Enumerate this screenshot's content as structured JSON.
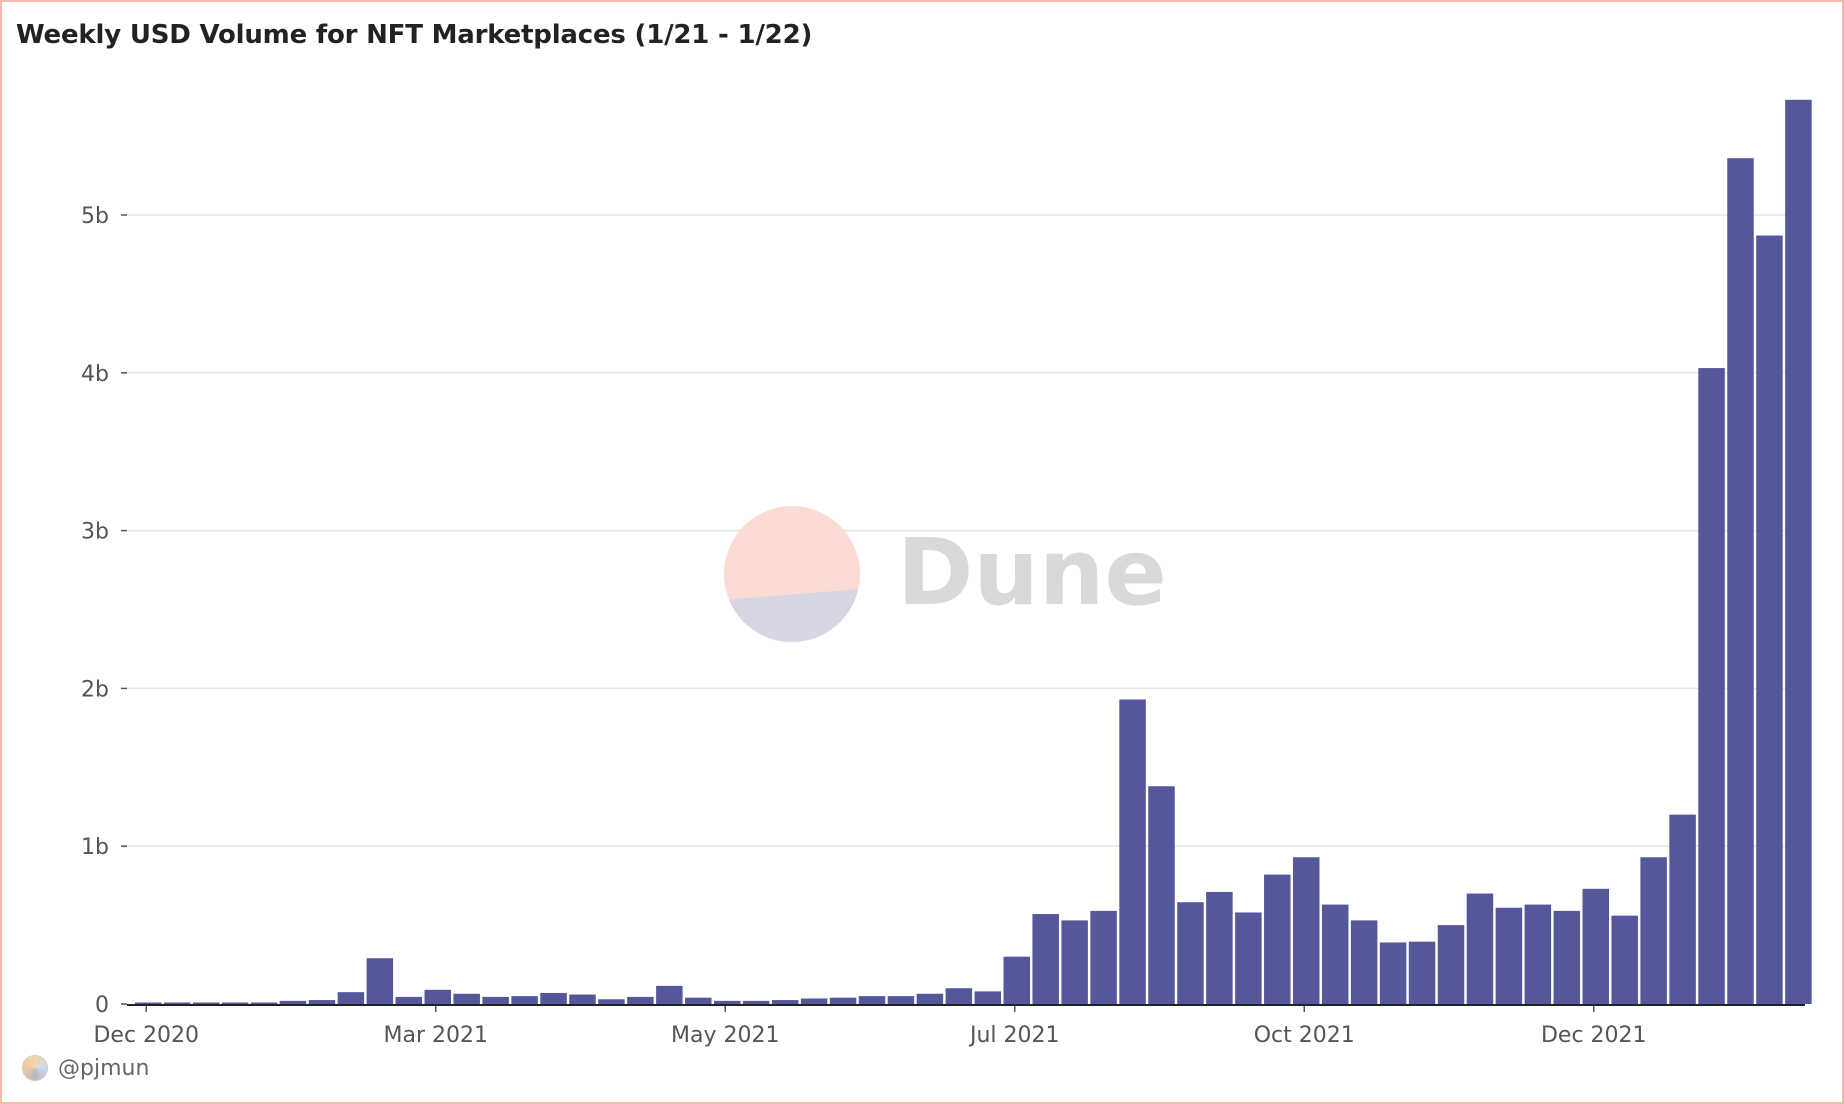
{
  "title": "Weekly USD Volume for NFT Marketplaces (1/21 - 1/22)",
  "watermark": {
    "text": "Dune",
    "colors": {
      "top": "#fbdcd5",
      "bottom": "#d6d6e4",
      "text": "#d9d9d9"
    }
  },
  "footer": {
    "user": "@pjmun",
    "icon": "avatar-icon"
  },
  "colors": {
    "bar": "#55579b",
    "grid": "#e6e6e6",
    "axis": "#222222",
    "border": "#f3b9a9"
  },
  "chart_data": {
    "type": "bar",
    "title": "Weekly USD Volume for NFT Marketplaces (1/21 - 1/22)",
    "xlabel": "",
    "ylabel": "",
    "ylim": [
      0,
      5.75
    ],
    "unit": "b",
    "grid": true,
    "y_ticks": [
      {
        "value": 0,
        "label": "0"
      },
      {
        "value": 1,
        "label": "1b"
      },
      {
        "value": 2,
        "label": "2b"
      },
      {
        "value": 3,
        "label": "3b"
      },
      {
        "value": 4,
        "label": "4b"
      },
      {
        "value": 5,
        "label": "5b"
      }
    ],
    "x_ticks": [
      {
        "index": 0,
        "label": "Dec 2020"
      },
      {
        "index": 10,
        "label": "Mar 2021"
      },
      {
        "index": 20,
        "label": "May 2021"
      },
      {
        "index": 30,
        "label": "Jul 2021"
      },
      {
        "index": 40,
        "label": "Oct 2021"
      },
      {
        "index": 50,
        "label": "Dec 2021"
      }
    ],
    "values": [
      0.005,
      0.005,
      0.005,
      0.005,
      0.005,
      0.02,
      0.025,
      0.075,
      0.29,
      0.045,
      0.09,
      0.065,
      0.045,
      0.05,
      0.07,
      0.06,
      0.03,
      0.045,
      0.115,
      0.04,
      0.02,
      0.02,
      0.025,
      0.035,
      0.04,
      0.05,
      0.05,
      0.065,
      0.1,
      0.08,
      0.3,
      0.57,
      0.53,
      0.59,
      1.93,
      1.38,
      0.645,
      0.71,
      0.58,
      0.82,
      0.93,
      0.63,
      0.53,
      0.39,
      0.395,
      0.5,
      0.7,
      0.61,
      0.63,
      0.59,
      0.73,
      0.56,
      0.93,
      1.2,
      4.03,
      5.36,
      4.87,
      5.73
    ]
  }
}
